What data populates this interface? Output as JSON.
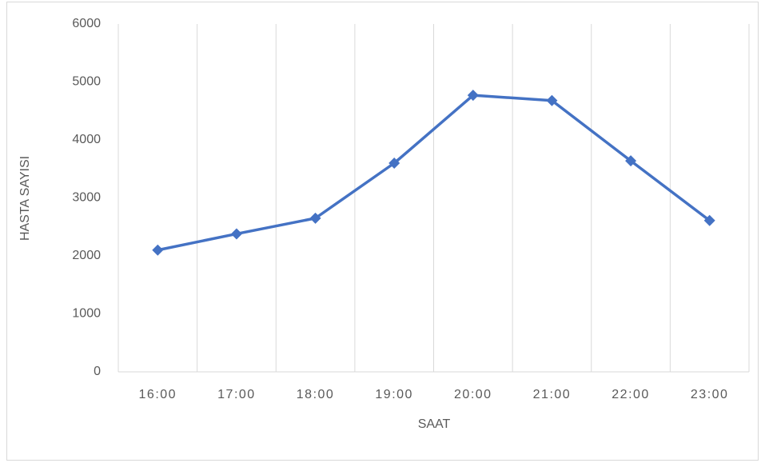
{
  "chart_data": {
    "type": "line",
    "x_label": "SAAT",
    "y_label": "HASTA SAYISI",
    "categories": [
      "16:00",
      "17:00",
      "18:00",
      "19:00",
      "20:00",
      "21:00",
      "22:00",
      "23:00"
    ],
    "series": [
      {
        "name": "HASTA SAYISI",
        "color": "#4472c4",
        "values": [
          2100,
          2380,
          2650,
          3600,
          4770,
          4680,
          3640,
          2610
        ]
      }
    ],
    "ylim": [
      0,
      6000
    ],
    "yticks": [
      0,
      1000,
      2000,
      3000,
      4000,
      5000,
      6000
    ],
    "grid": false,
    "x_grid": true,
    "legend": false
  }
}
